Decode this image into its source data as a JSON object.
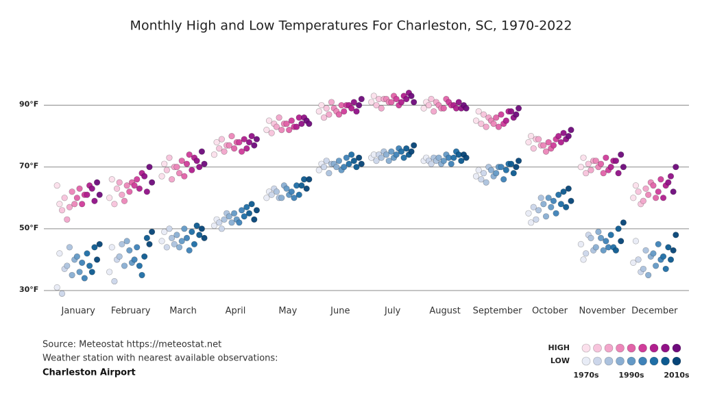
{
  "chart_data": {
    "type": "strip",
    "title": "Monthly High and Low Temperatures For Charleston, SC, 1970-2022",
    "source": "Source: Meteostat https://meteostat.net",
    "notes": [
      "Weather station with nearest available observations:",
      "Charleston Airport"
    ],
    "categories": [
      "January",
      "February",
      "March",
      "April",
      "May",
      "June",
      "July",
      "August",
      "September",
      "October",
      "November",
      "December"
    ],
    "ylim": [
      26,
      97
    ],
    "yticks": [
      {
        "value": 30,
        "label": "30°F"
      },
      {
        "value": 50,
        "label": "50°F"
      },
      {
        "value": 70,
        "label": "70°F"
      },
      {
        "value": 90,
        "label": "90°F"
      }
    ],
    "grid": true,
    "legend_labels": [
      "1970s",
      "1990s",
      "2010s"
    ],
    "series_groups": [
      {
        "name": "HIGH",
        "series": [
          {
            "color": "#fbe0ec",
            "values": [
              [
                64,
                58
              ],
              [
                60,
                66
              ],
              [
                67,
                71
              ],
              [
                74,
                78
              ],
              [
                82,
                85
              ],
              [
                88,
                90
              ],
              [
                91,
                93
              ],
              [
                89,
                91
              ],
              [
                85,
                88
              ],
              [
                78,
                80
              ],
              [
                70,
                73
              ],
              [
                60,
                64
              ]
            ]
          },
          {
            "color": "#f7c4dc",
            "values": [
              [
                56,
                60
              ],
              [
                58,
                63
              ],
              [
                69,
                73
              ],
              [
                76,
                79
              ],
              [
                81,
                84
              ],
              [
                86,
                89
              ],
              [
                90,
                92
              ],
              [
                90,
                92
              ],
              [
                84,
                87
              ],
              [
                76,
                79
              ],
              [
                68,
                71
              ],
              [
                62,
                58
              ]
            ]
          },
          {
            "color": "#f2a6cb",
            "values": [
              [
                53,
                57
              ],
              [
                65,
                61
              ],
              [
                66,
                70
              ],
              [
                75,
                77
              ],
              [
                83,
                86
              ],
              [
                87,
                91
              ],
              [
                89,
                92
              ],
              [
                88,
                91
              ],
              [
                83,
                86
              ],
              [
                79,
                77
              ],
              [
                69,
                72
              ],
              [
                59,
                63
              ]
            ]
          },
          {
            "color": "#ec86b9",
            "values": [
              [
                62,
                58
              ],
              [
                59,
                64
              ],
              [
                70,
                68
              ],
              [
                77,
                80
              ],
              [
                82,
                84
              ],
              [
                89,
                88
              ],
              [
                92,
                91
              ],
              [
                90,
                89
              ],
              [
                85,
                84
              ],
              [
                77,
                75
              ],
              [
                72,
                70
              ],
              [
                61,
                65
              ]
            ]
          },
          {
            "color": "#e163a8",
            "values": [
              [
                60,
                63
              ],
              [
                62,
                65
              ],
              [
                72,
                67
              ],
              [
                76,
                78
              ],
              [
                84,
                82
              ],
              [
                87,
                90
              ],
              [
                91,
                93
              ],
              [
                89,
                92
              ],
              [
                86,
                83
              ],
              [
                78,
                76
              ],
              [
                71,
                68
              ],
              [
                64,
                60
              ]
            ]
          },
          {
            "color": "#cf3d9a",
            "values": [
              [
                58,
                61
              ],
              [
                64,
                66
              ],
              [
                71,
                74
              ],
              [
                78,
                75
              ],
              [
                85,
                83
              ],
              [
                88,
                90
              ],
              [
                92,
                90
              ],
              [
                91,
                90
              ],
              [
                87,
                84
              ],
              [
                77,
                79
              ],
              [
                73,
                69
              ],
              [
                62,
                66
              ]
            ]
          },
          {
            "color": "#b01f8e",
            "values": [
              [
                61,
                64
              ],
              [
                63,
                68
              ],
              [
                69,
                73
              ],
              [
                79,
                76
              ],
              [
                83,
                86
              ],
              [
                90,
                89
              ],
              [
                91,
                93
              ],
              [
                90,
                89
              ],
              [
                85,
                88
              ],
              [
                80,
                78
              ],
              [
                70,
                72
              ],
              [
                60,
                64
              ]
            ]
          },
          {
            "color": "#911187",
            "values": [
              [
                63,
                59
              ],
              [
                67,
                62
              ],
              [
                72,
                70
              ],
              [
                78,
                80
              ],
              [
                84,
                86
              ],
              [
                91,
                88
              ],
              [
                92,
                94
              ],
              [
                91,
                89
              ],
              [
                88,
                86
              ],
              [
                81,
                79
              ],
              [
                72,
                68
              ],
              [
                65,
                67
              ]
            ]
          },
          {
            "color": "#6e0b7c",
            "values": [
              [
                65,
                61
              ],
              [
                70,
                65
              ],
              [
                75,
                71
              ],
              [
                77,
                79
              ],
              [
                85,
                84
              ],
              [
                90,
                92
              ],
              [
                93,
                91
              ],
              [
                90,
                89
              ],
              [
                87,
                89
              ],
              [
                80,
                82
              ],
              [
                74,
                70
              ],
              [
                62,
                70
              ]
            ]
          }
        ]
      },
      {
        "name": "LOW",
        "series": [
          {
            "color": "#e8ecf6",
            "values": [
              [
                31,
                42
              ],
              [
                36,
                44
              ],
              [
                46,
                49
              ],
              [
                51,
                53
              ],
              [
                60,
                62
              ],
              [
                69,
                71
              ],
              [
                73,
                74
              ],
              [
                72,
                73
              ],
              [
                67,
                69
              ],
              [
                55,
                52
              ],
              [
                45,
                40
              ],
              [
                39,
                46
              ]
            ]
          },
          {
            "color": "#ccd6ea",
            "values": [
              [
                29,
                37
              ],
              [
                33,
                40
              ],
              [
                44,
                50
              ],
              [
                52,
                50
              ],
              [
                61,
                63
              ],
              [
                70,
                72
              ],
              [
                72,
                74
              ],
              [
                72,
                71
              ],
              [
                66,
                68
              ],
              [
                57,
                53
              ],
              [
                42,
                48
              ],
              [
                40,
                36
              ]
            ]
          },
          {
            "color": "#acc2de",
            "values": [
              [
                38,
                44
              ],
              [
                41,
                45
              ],
              [
                47,
                45
              ],
              [
                53,
                55
              ],
              [
                62,
                60
              ],
              [
                68,
                71
              ],
              [
                73,
                75
              ],
              [
                73,
                72
              ],
              [
                65,
                70
              ],
              [
                56,
                60
              ],
              [
                47,
                43
              ],
              [
                37,
                43
              ]
            ]
          },
          {
            "color": "#8aaed2",
            "values": [
              [
                35,
                40
              ],
              [
                38,
                46
              ],
              [
                48,
                44
              ],
              [
                54,
                52
              ],
              [
                60,
                64
              ],
              [
                71,
                70
              ],
              [
                74,
                72
              ],
              [
                73,
                71
              ],
              [
                69,
                67
              ],
              [
                58,
                54
              ],
              [
                44,
                49
              ],
              [
                35,
                41
              ]
            ]
          },
          {
            "color": "#6499c6",
            "values": [
              [
                41,
                36
              ],
              [
                43,
                39
              ],
              [
                46,
                50
              ],
              [
                55,
                53
              ],
              [
                63,
                61
              ],
              [
                72,
                69
              ],
              [
                75,
                73
              ],
              [
                72,
                74
              ],
              [
                68,
                70
              ],
              [
                60,
                57
              ],
              [
                47,
                43
              ],
              [
                42,
                38
              ]
            ]
          },
          {
            "color": "#3f82b8",
            "values": [
              [
                39,
                34
              ],
              [
                40,
                44
              ],
              [
                47,
                43
              ],
              [
                52,
                56
              ],
              [
                62,
                60
              ],
              [
                70,
                73
              ],
              [
                74,
                76
              ],
              [
                73,
                71
              ],
              [
                70,
                66
              ],
              [
                59,
                55
              ],
              [
                46,
                44
              ],
              [
                45,
                40
              ]
            ]
          },
          {
            "color": "#1f6ea6",
            "values": [
              [
                42,
                38
              ],
              [
                38,
                35
              ],
              [
                49,
                45
              ],
              [
                54,
                57
              ],
              [
                64,
                61
              ],
              [
                71,
                74
              ],
              [
                75,
                73
              ],
              [
                73,
                75
              ],
              [
                69,
                71
              ],
              [
                61,
                58
              ],
              [
                48,
                44
              ],
              [
                41,
                37
              ]
            ]
          },
          {
            "color": "#0d5a90",
            "values": [
              [
                36,
                44
              ],
              [
                41,
                47
              ],
              [
                51,
                48
              ],
              [
                55,
                58
              ],
              [
                64,
                66
              ],
              [
                72,
                70
              ],
              [
                76,
                74
              ],
              [
                74,
                72
              ],
              [
                71,
                68
              ],
              [
                62,
                57
              ],
              [
                43,
                50
              ],
              [
                44,
                40
              ]
            ]
          },
          {
            "color": "#064477",
            "values": [
              [
                40,
                45
              ],
              [
                45,
                49
              ],
              [
                50,
                47
              ],
              [
                53,
                56
              ],
              [
                63,
                66
              ],
              [
                73,
                71
              ],
              [
                75,
                77
              ],
              [
                74,
                73
              ],
              [
                70,
                72
              ],
              [
                63,
                59
              ],
              [
                46,
                52
              ],
              [
                43,
                48
              ]
            ]
          }
        ]
      }
    ]
  }
}
